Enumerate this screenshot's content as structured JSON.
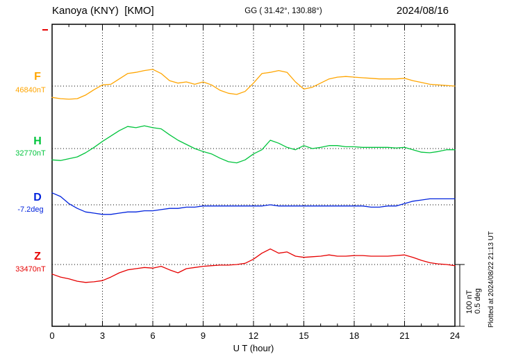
{
  "header": {
    "station": "Kanoya (KNY)  [KMO]",
    "coords": "GG ( 31.42°, 130.88°)",
    "date": "2024/08/16"
  },
  "x_axis": {
    "label": "U T (hour)",
    "ticks": [
      0,
      3,
      6,
      9,
      12,
      15,
      18,
      21,
      24
    ]
  },
  "scale_note": {
    "line1": "100 nT",
    "line2": "0.5 deg"
  },
  "plotted_at": "Plotted at 2024/08/22 21:13 UT",
  "chart_data": {
    "type": "line",
    "title": "Kanoya (KNY) [KMO]",
    "date": "2024/08/16",
    "xlabel": "U T (hour)",
    "x_range": [
      0,
      24
    ],
    "x_hours_step": 0.5,
    "grid": "dotted vertical every 3 h, dotted horizontal at each baseline",
    "scale": {
      "nT_per_division": 100,
      "deg_per_division": 0.5
    },
    "series": [
      {
        "name": "F",
        "units": "nT",
        "baseline": 46840,
        "baseline_label": "46840nT",
        "color": "#ffa500",
        "values": [
          46821,
          46819,
          46818,
          46819,
          46825,
          46834,
          46842,
          46843,
          46852,
          46861,
          46863,
          46866,
          46868,
          46861,
          46849,
          46845,
          46847,
          46843,
          46847,
          46842,
          46833,
          46828,
          46826,
          46831,
          46845,
          46861,
          46863,
          46866,
          46863,
          46847,
          46835,
          46838,
          46845,
          46852,
          46855,
          46856,
          46855,
          46854,
          46853,
          46852,
          46852,
          46852,
          46853,
          46849,
          46846,
          46843,
          46842,
          46841,
          46840
        ]
      },
      {
        "name": "H",
        "units": "nT",
        "baseline": 32770,
        "baseline_label": "32770nT",
        "color": "#00c43c",
        "values": [
          32751,
          32750,
          32753,
          32756,
          32763,
          32772,
          32782,
          32791,
          32800,
          32807,
          32805,
          32808,
          32805,
          32803,
          32793,
          32784,
          32777,
          32770,
          32765,
          32761,
          32754,
          32748,
          32746,
          32751,
          32761,
          32768,
          32784,
          32779,
          32772,
          32768,
          32775,
          32770,
          32772,
          32775,
          32775,
          32773,
          32773,
          32772,
          32772,
          32772,
          32772,
          32771,
          32772,
          32768,
          32764,
          32763,
          32765,
          32768,
          32768
        ]
      },
      {
        "name": "D",
        "units": "deg",
        "baseline": -7.2,
        "baseline_label": "-7.2deg",
        "color": "#0022dd",
        "values": [
          -7.1,
          -7.13,
          -7.19,
          -7.23,
          -7.26,
          -7.27,
          -7.28,
          -7.28,
          -7.27,
          -7.26,
          -7.26,
          -7.25,
          -7.25,
          -7.24,
          -7.23,
          -7.23,
          -7.22,
          -7.22,
          -7.21,
          -7.21,
          -7.21,
          -7.21,
          -7.21,
          -7.21,
          -7.21,
          -7.21,
          -7.2,
          -7.21,
          -7.21,
          -7.21,
          -7.21,
          -7.21,
          -7.21,
          -7.21,
          -7.21,
          -7.21,
          -7.21,
          -7.21,
          -7.22,
          -7.22,
          -7.21,
          -7.21,
          -7.19,
          -7.17,
          -7.16,
          -7.15,
          -7.15,
          -7.15,
          -7.15
        ]
      },
      {
        "name": "Z",
        "units": "nT",
        "baseline": 33470,
        "baseline_label": "33470nT",
        "color": "#e60000",
        "values": [
          33454,
          33449,
          33446,
          33442,
          33440,
          33441,
          33443,
          33449,
          33456,
          33461,
          33463,
          33465,
          33464,
          33467,
          33461,
          33456,
          33463,
          33465,
          33467,
          33468,
          33469,
          33469,
          33470,
          33472,
          33479,
          33489,
          33496,
          33489,
          33491,
          33484,
          33482,
          33483,
          33484,
          33486,
          33484,
          33484,
          33485,
          33485,
          33484,
          33484,
          33484,
          33485,
          33486,
          33482,
          33477,
          33473,
          33471,
          33470,
          33468
        ]
      }
    ]
  }
}
